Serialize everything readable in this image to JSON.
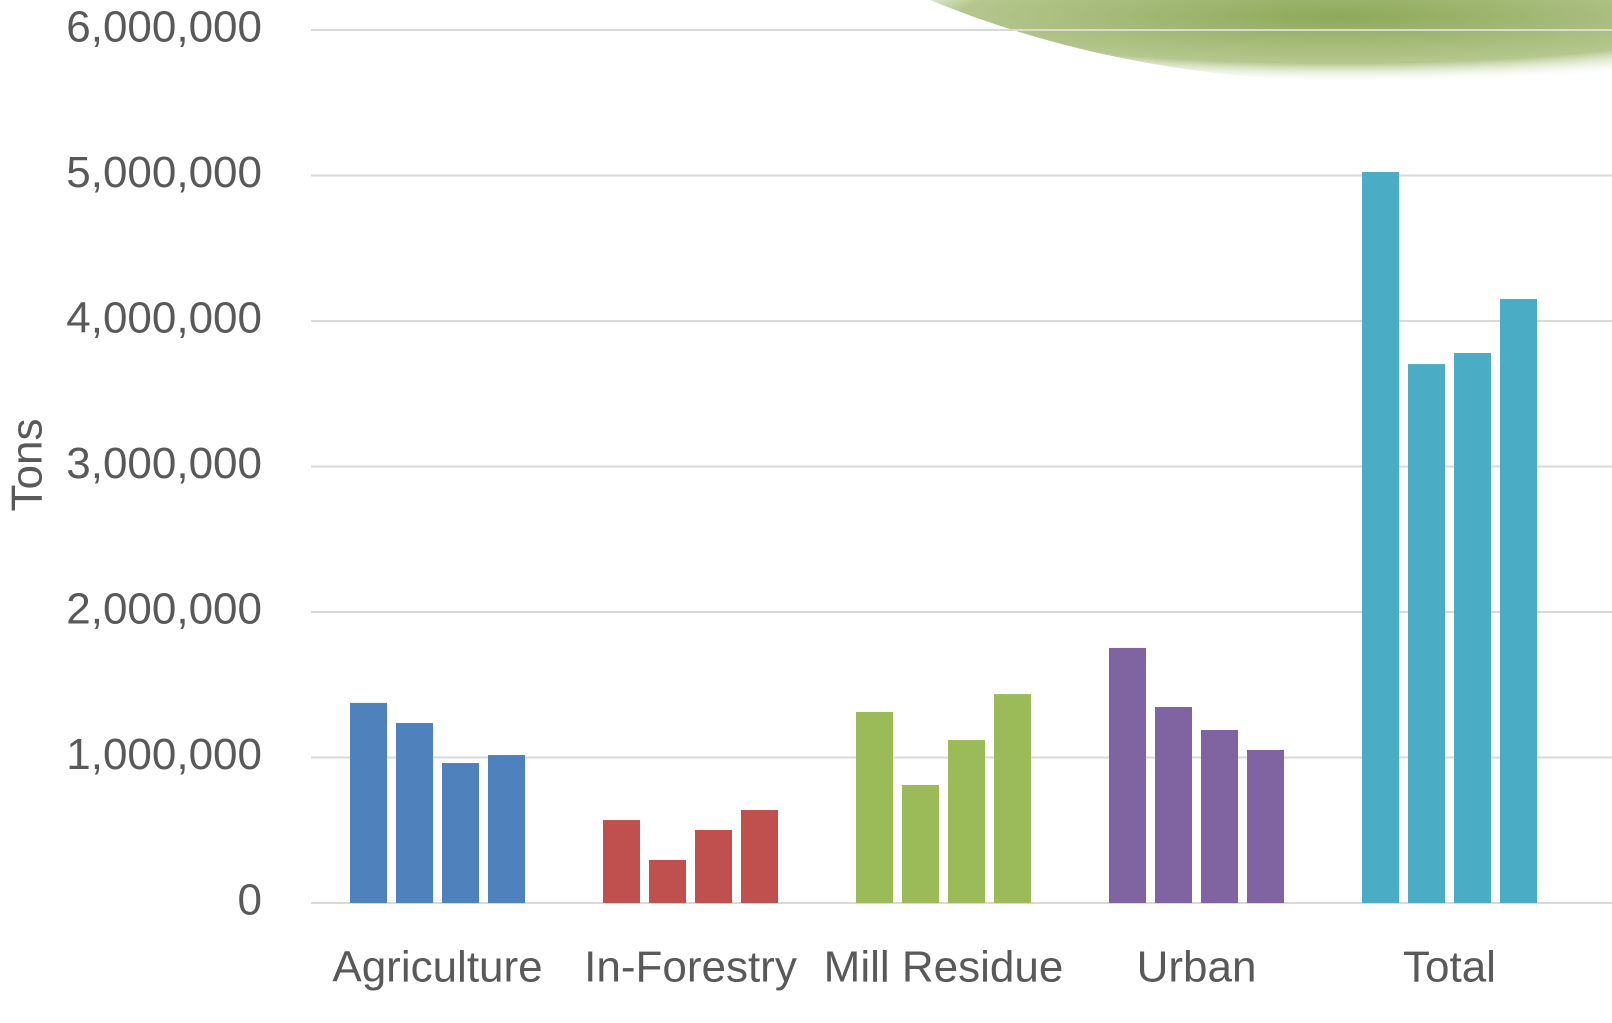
{
  "chart_data": {
    "type": "grouped-bar",
    "y_label": "Tons",
    "categories": [
      "Agriculture",
      "In-Forestry",
      "Mill Residue",
      "Urban",
      "Total"
    ],
    "colors": [
      "#4f81bd",
      "#c0504d",
      "#9bbb59",
      "#8064a2",
      "#4bacc6"
    ],
    "values": [
      [
        1375000,
        1237000,
        962000,
        1017000
      ],
      [
        570000,
        296000,
        502000,
        639000
      ],
      [
        1313000,
        811000,
        1120000,
        1436000
      ],
      [
        1753000,
        1347000,
        1189000,
        1052000
      ],
      [
        5024000,
        3704000,
        3780000,
        4151000
      ]
    ],
    "ylim": [
      0,
      6000000
    ],
    "yticks": [
      0,
      {
        "value": 1000000,
        "label": "1,000,000"
      },
      {
        "value": 2000000,
        "label": "2,000,000"
      },
      {
        "value": 3000000,
        "label": "3,000,000"
      },
      {
        "value": 4000000,
        "label": "4,000,000"
      },
      {
        "value": 5000000,
        "label": "5,000,000"
      },
      {
        "value": 6000000,
        "label": "6,000,000"
      }
    ],
    "grid": true
  }
}
